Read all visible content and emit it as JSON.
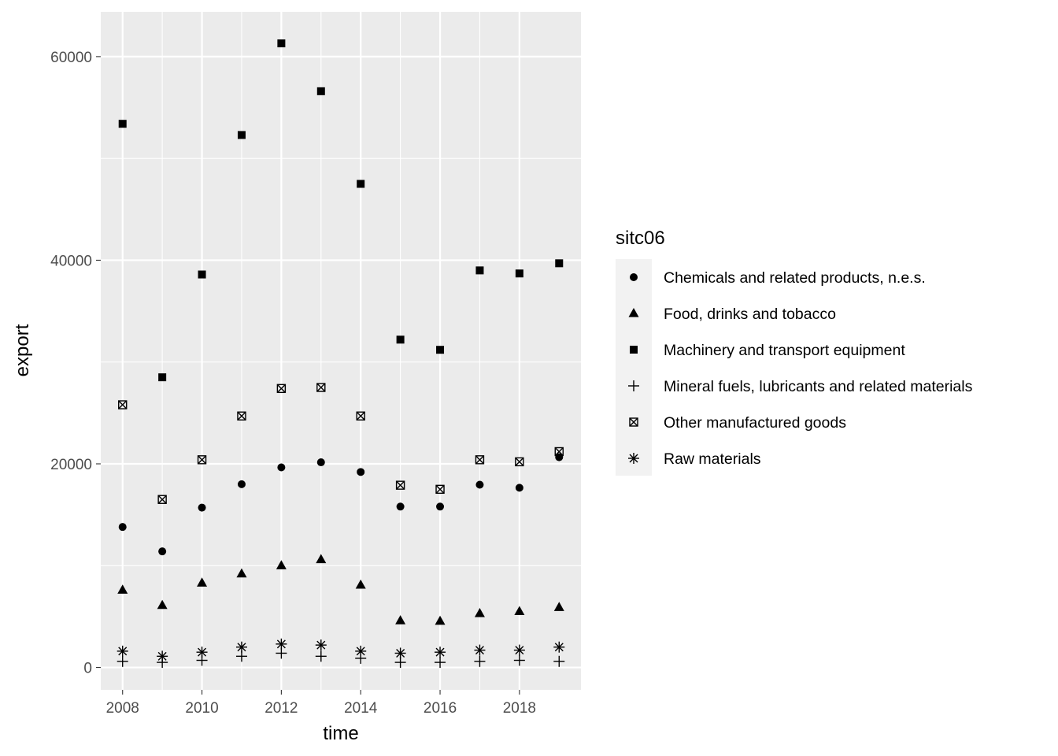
{
  "chart_data": {
    "type": "scatter",
    "xlabel": "time",
    "ylabel": "export",
    "xlim": [
      2007.45,
      2019.55
    ],
    "ylim": [
      -2200,
      64400
    ],
    "x_ticks": [
      "2008",
      "2010",
      "2012",
      "2014",
      "2016",
      "2018"
    ],
    "y_ticks": [
      "0",
      "20000",
      "40000",
      "60000"
    ],
    "grid": true,
    "legend": {
      "title": "sitc06",
      "position": "right"
    },
    "x": [
      2008,
      2009,
      2010,
      2011,
      2012,
      2013,
      2014,
      2015,
      2016,
      2017,
      2018,
      2019
    ],
    "series": [
      {
        "name": "Chemicals and related products, n.e.s.",
        "shape": "circle",
        "values": [
          13800,
          11400,
          15700,
          18000,
          19650,
          20150,
          19200,
          15800,
          15800,
          17950,
          17650,
          20650
        ]
      },
      {
        "name": "Food, drinks and tobacco",
        "shape": "triangle",
        "values": [
          7600,
          6100,
          8300,
          9200,
          10000,
          10600,
          8100,
          4600,
          4550,
          5300,
          5500,
          5900
        ]
      },
      {
        "name": "Machinery and transport equipment",
        "shape": "square",
        "values": [
          53400,
          28500,
          38600,
          52300,
          61300,
          56600,
          47500,
          32200,
          31200,
          39000,
          38700,
          39700
        ]
      },
      {
        "name": "Mineral fuels, lubricants and related materials",
        "shape": "plus",
        "values": [
          600,
          500,
          700,
          1100,
          1400,
          1100,
          900,
          500,
          500,
          600,
          700,
          600
        ]
      },
      {
        "name": "Other manufactured goods",
        "shape": "boxed-x",
        "values": [
          25800,
          16500,
          20400,
          24700,
          27400,
          27500,
          24700,
          17900,
          17500,
          20400,
          20200,
          21200
        ]
      },
      {
        "name": "Raw materials",
        "shape": "asterisk",
        "values": [
          1600,
          1100,
          1500,
          2000,
          2300,
          2200,
          1600,
          1400,
          1500,
          1700,
          1700,
          2000
        ]
      }
    ]
  }
}
